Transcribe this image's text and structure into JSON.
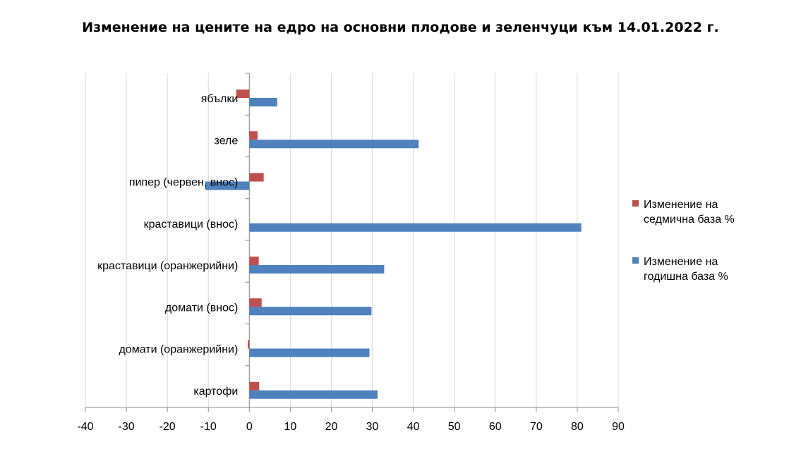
{
  "chart_data": {
    "type": "bar",
    "orientation": "horizontal",
    "title": "Изменение на цените на едро на основни плодове и зеленчуци към 14.01.2022 г.",
    "categories": [
      "ябълки",
      "зеле",
      "пипер (червен, внос)",
      "краставици (внос)",
      "краставици (оранжерийни)",
      "домати (внос)",
      "домати (оранжерийни)",
      "картофи"
    ],
    "series": [
      {
        "name": "Изменение на седмична база %",
        "color": "#c0504d",
        "values": [
          -3.2,
          2.0,
          3.5,
          0.0,
          2.3,
          3.0,
          -0.4,
          2.4
        ]
      },
      {
        "name": "Изменение на годишна база %",
        "color": "#4f81bd",
        "values": [
          6.8,
          41.3,
          -10.8,
          81.0,
          32.9,
          29.8,
          29.3,
          31.3
        ]
      }
    ],
    "x_ticks": [
      "-40",
      "-30",
      "-20",
      "-10",
      "0",
      "10",
      "20",
      "30",
      "40",
      "50",
      "60",
      "70",
      "80",
      "90"
    ],
    "xlim": [
      -40,
      90
    ],
    "grid": "vertical",
    "legend": "right",
    "xlabel": "",
    "ylabel": ""
  },
  "legend": [
    {
      "label": "Изменение на седмична база %",
      "color": "#c0504d"
    },
    {
      "label": "Изменение на годишна база %",
      "color": "#4f81bd"
    }
  ]
}
